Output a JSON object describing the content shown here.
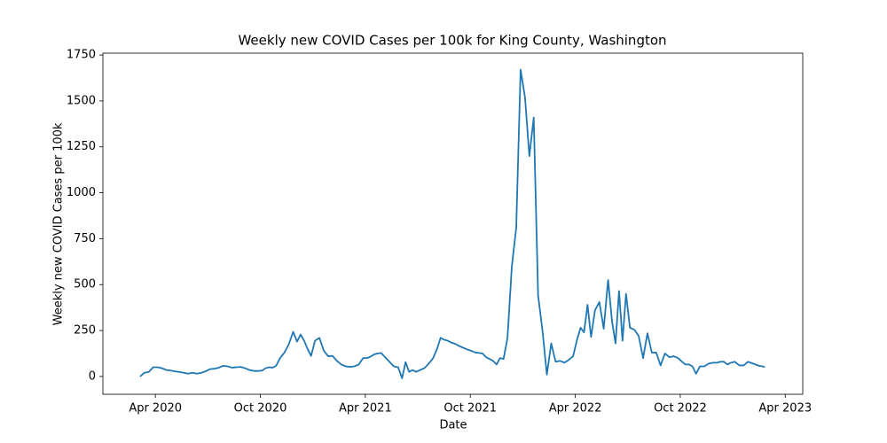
{
  "chart_data": {
    "type": "line",
    "title": "Weekly new COVID Cases per 100k for King County, Washington",
    "xlabel": "Date",
    "ylabel": "Weekly new COVID Cases per 100k",
    "color": "#1f77b4",
    "x": [
      "2020-03",
      "2020-03",
      "2020-03",
      "2020-03",
      "2020-04",
      "2020-04",
      "2020-04",
      "2020-04",
      "2020-05",
      "2020-05",
      "2020-05",
      "2020-05",
      "2020-06",
      "2020-06",
      "2020-06",
      "2020-06",
      "2020-07",
      "2020-07",
      "2020-07",
      "2020-07",
      "2020-08",
      "2020-08",
      "2020-08",
      "2020-08",
      "2020-09",
      "2020-09",
      "2020-09",
      "2020-09",
      "2020-10",
      "2020-10",
      "2020-10",
      "2020-10",
      "2020-10",
      "2020-11",
      "2020-11",
      "2020-11",
      "2020-11",
      "2020-12",
      "2020-12",
      "2020-12",
      "2020-12",
      "2020-12",
      "2021-01",
      "2021-01",
      "2021-01",
      "2021-01",
      "2021-02",
      "2021-02",
      "2021-02",
      "2021-02",
      "2021-03",
      "2021-03",
      "2021-03",
      "2021-03",
      "2021-04",
      "2021-04",
      "2021-04",
      "2021-04",
      "2021-04",
      "2021-05",
      "2021-05",
      "2021-05",
      "2021-05",
      "2021-06",
      "2021-06",
      "2021-06",
      "2021-06",
      "2021-06",
      "2021-07",
      "2021-07",
      "2021-07",
      "2021-07",
      "2021-08",
      "2021-08",
      "2021-08",
      "2021-08",
      "2021-08",
      "2021-09",
      "2021-09",
      "2021-09",
      "2021-09",
      "2021-10",
      "2021-10",
      "2021-10",
      "2021-10",
      "2021-10",
      "2021-11",
      "2021-11",
      "2021-11",
      "2021-11",
      "2021-11",
      "2021-12",
      "2021-12",
      "2021-12",
      "2021-12",
      "2022-01",
      "2022-01",
      "2022-01",
      "2022-01",
      "2022-02",
      "2022-02",
      "2022-02",
      "2022-02",
      "2022-03",
      "2022-03",
      "2022-03",
      "2022-03",
      "2022-04",
      "2022-04",
      "2022-04",
      "2022-04",
      "2022-04",
      "2022-05",
      "2022-05",
      "2022-05",
      "2022-05",
      "2022-06",
      "2022-06",
      "2022-06",
      "2022-06",
      "2022-06",
      "2022-07",
      "2022-07",
      "2022-07",
      "2022-07",
      "2022-08",
      "2022-08",
      "2022-08",
      "2022-08",
      "2022-09",
      "2022-09",
      "2022-09",
      "2022-09",
      "2022-10",
      "2022-10",
      "2022-10",
      "2022-10",
      "2022-10",
      "2022-11",
      "2022-11",
      "2022-11",
      "2022-11",
      "2022-12",
      "2022-12",
      "2022-12",
      "2022-12",
      "2022-12",
      "2023-01",
      "2023-01",
      "2023-01",
      "2023-01",
      "2023-02",
      "2023-02",
      "2023-02"
    ],
    "values": [
      0,
      20,
      25,
      50,
      50,
      45,
      35,
      32,
      28,
      24,
      20,
      15,
      20,
      15,
      20,
      28,
      40,
      42,
      48,
      58,
      55,
      48,
      50,
      52,
      45,
      35,
      30,
      30,
      32,
      45,
      50,
      48,
      58,
      100,
      130,
      175,
      243,
      190,
      228,
      195,
      150,
      112,
      195,
      210,
      140,
      110,
      112,
      85,
      65,
      55,
      52,
      55,
      65,
      100,
      100,
      108,
      120,
      125,
      128,
      105,
      80,
      55,
      50,
      -10,
      78,
      25,
      35,
      25,
      35,
      45,
      70,
      100,
      150,
      210,
      200,
      195,
      185,
      178,
      165,
      155,
      145,
      138,
      130,
      128,
      125,
      105,
      95,
      85,
      65,
      100,
      95,
      210,
      600,
      810,
      1670,
      1520,
      1200,
      1410,
      440,
      250,
      10,
      180,
      80,
      85,
      75,
      90,
      110,
      200,
      265,
      240,
      390,
      215,
      360,
      405,
      260,
      525,
      300,
      180,
      465,
      195,
      450,
      265,
      255,
      220,
      100,
      235,
      130,
      130,
      60,
      125,
      105,
      110,
      100,
      80,
      65,
      65,
      55,
      15,
      55,
      55,
      70,
      75,
      75,
      80,
      80,
      65,
      75,
      80,
      60,
      60,
      80,
      70,
      58,
      52
    ],
    "xlim": [
      "2020-01",
      "2023-05"
    ],
    "xticks": [
      {
        "value": "2020-04",
        "label": "Apr 2020"
      },
      {
        "value": "2020-10",
        "label": "Oct 2020"
      },
      {
        "value": "2021-04",
        "label": "Apr 2021"
      },
      {
        "value": "2021-10",
        "label": "Oct 2021"
      },
      {
        "value": "2022-04",
        "label": "Apr 2022"
      },
      {
        "value": "2022-10",
        "label": "Oct 2022"
      },
      {
        "value": "2023-04",
        "label": "Apr 2023"
      }
    ],
    "ylim": [
      -97,
      1760
    ],
    "yticks": [
      0,
      250,
      500,
      750,
      1000,
      1250,
      1500,
      1750
    ],
    "grid": false
  }
}
